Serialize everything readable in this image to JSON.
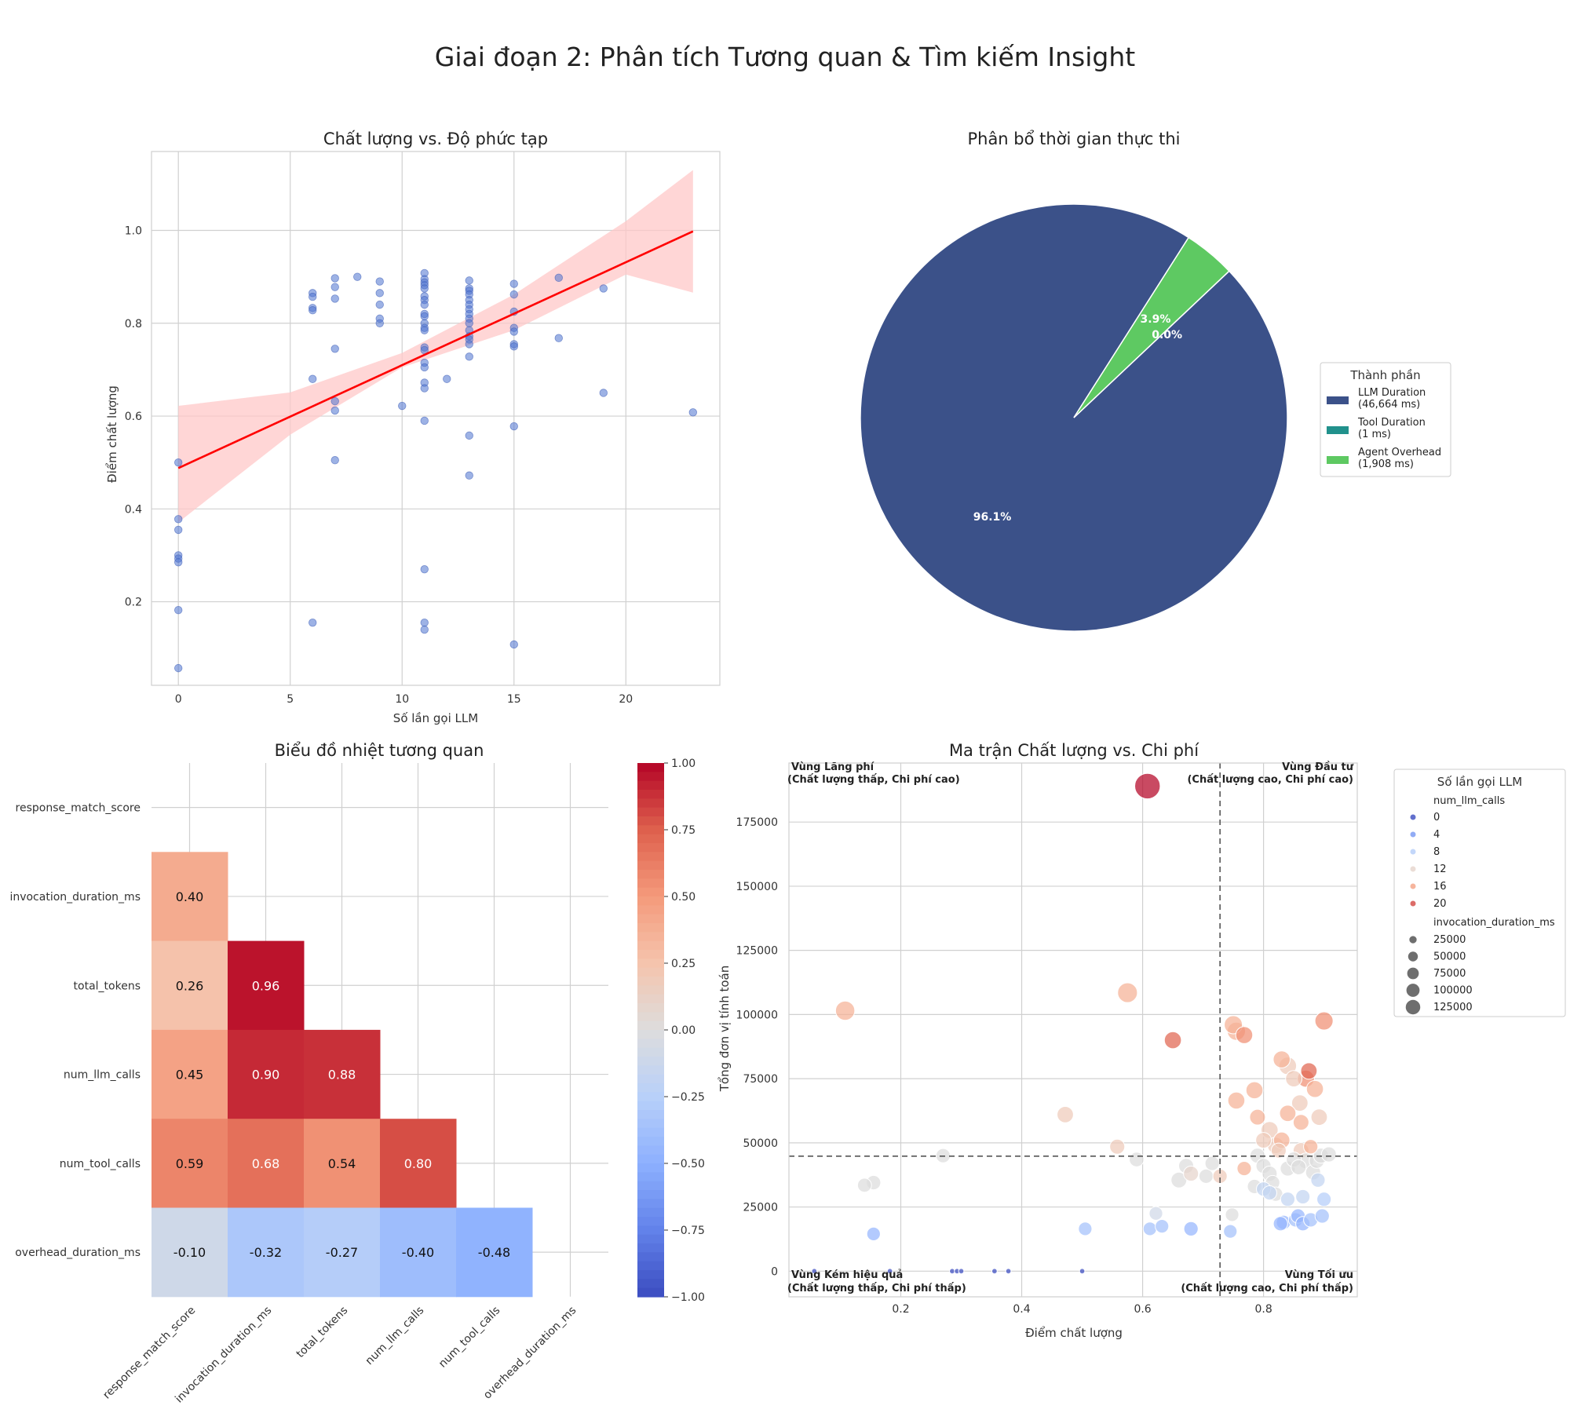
{
  "figure": {
    "title": "Giai đoạn 2: Phân tích Tương quan & Tìm kiếm Insight"
  },
  "chart_data": [
    {
      "type": "scatter",
      "title": "Chất lượng vs. Độ phức tạp",
      "xlabel": "Số lần gọi LLM",
      "ylabel": "Điểm chất lượng",
      "xlim": [
        -1.2,
        24.2
      ],
      "ylim": [
        0.02,
        1.17
      ],
      "xticks": [
        0,
        5,
        10,
        15,
        20
      ],
      "yticks": [
        0.2,
        0.4,
        0.6,
        0.8,
        1.0
      ],
      "point_color": "#4c72d0",
      "regression": {
        "x": [
          0,
          23
        ],
        "y": [
          0.488,
          0.998
        ],
        "color": "#ff0000",
        "ci_color": "#ffc8c8",
        "ci_upper": [
          [
            0,
            0.622
          ],
          [
            5,
            0.651
          ],
          [
            10,
            0.736
          ],
          [
            15,
            0.862
          ],
          [
            20,
            1.02
          ],
          [
            23,
            1.13
          ]
        ],
        "ci_lower": [
          [
            0,
            0.371
          ],
          [
            5,
            0.56
          ],
          [
            10,
            0.705
          ],
          [
            15,
            0.785
          ],
          [
            20,
            0.905
          ],
          [
            23,
            0.866
          ]
        ]
      },
      "points": [
        [
          0,
          0.5
        ],
        [
          0,
          0.378
        ],
        [
          0,
          0.355
        ],
        [
          0,
          0.3
        ],
        [
          0,
          0.293
        ],
        [
          0,
          0.285
        ],
        [
          0,
          0.182
        ],
        [
          0,
          0.057
        ],
        [
          6,
          0.865
        ],
        [
          6,
          0.857
        ],
        [
          6,
          0.833
        ],
        [
          6,
          0.828
        ],
        [
          6,
          0.68
        ],
        [
          6,
          0.155
        ],
        [
          7,
          0.897
        ],
        [
          7,
          0.878
        ],
        [
          7,
          0.853
        ],
        [
          7,
          0.745
        ],
        [
          7,
          0.632
        ],
        [
          7,
          0.612
        ],
        [
          7,
          0.505
        ],
        [
          8,
          0.9
        ],
        [
          9,
          0.89
        ],
        [
          9,
          0.865
        ],
        [
          9,
          0.84
        ],
        [
          9,
          0.81
        ],
        [
          9,
          0.8
        ],
        [
          10,
          0.622
        ],
        [
          11,
          0.908
        ],
        [
          11,
          0.895
        ],
        [
          11,
          0.888
        ],
        [
          11,
          0.882
        ],
        [
          11,
          0.875
        ],
        [
          11,
          0.858
        ],
        [
          11,
          0.85
        ],
        [
          11,
          0.84
        ],
        [
          11,
          0.82
        ],
        [
          11,
          0.815
        ],
        [
          11,
          0.8
        ],
        [
          11,
          0.79
        ],
        [
          11,
          0.785
        ],
        [
          11,
          0.748
        ],
        [
          11,
          0.742
        ],
        [
          11,
          0.715
        ],
        [
          11,
          0.705
        ],
        [
          11,
          0.672
        ],
        [
          11,
          0.66
        ],
        [
          11,
          0.59
        ],
        [
          11,
          0.27
        ],
        [
          11,
          0.155
        ],
        [
          11,
          0.14
        ],
        [
          12,
          0.68
        ],
        [
          13,
          0.892
        ],
        [
          13,
          0.875
        ],
        [
          13,
          0.87
        ],
        [
          13,
          0.862
        ],
        [
          13,
          0.85
        ],
        [
          13,
          0.84
        ],
        [
          13,
          0.83
        ],
        [
          13,
          0.82
        ],
        [
          13,
          0.81
        ],
        [
          13,
          0.8
        ],
        [
          13,
          0.785
        ],
        [
          13,
          0.772
        ],
        [
          13,
          0.765
        ],
        [
          13,
          0.755
        ],
        [
          13,
          0.728
        ],
        [
          13,
          0.558
        ],
        [
          13,
          0.472
        ],
        [
          15,
          0.885
        ],
        [
          15,
          0.862
        ],
        [
          15,
          0.825
        ],
        [
          15,
          0.79
        ],
        [
          15,
          0.782
        ],
        [
          15,
          0.755
        ],
        [
          15,
          0.75
        ],
        [
          15,
          0.578
        ],
        [
          15,
          0.108
        ],
        [
          17,
          0.898
        ],
        [
          17,
          0.768
        ],
        [
          19,
          0.875
        ],
        [
          19,
          0.65
        ],
        [
          23,
          0.608
        ]
      ]
    },
    {
      "type": "pie",
      "title": "Phân bổ thời gian thực thi",
      "legend_title": "Thành phần",
      "slices": [
        {
          "label": "LLM Duration",
          "detail": "(46,664 ms)",
          "value": 46664,
          "pct": "96.1%",
          "color": "#3b5189"
        },
        {
          "label": "Tool Duration",
          "detail": "(1 ms)",
          "value": 1,
          "pct": "0.0%",
          "color": "#21918c"
        },
        {
          "label": "Agent Overhead",
          "detail": "(1,908 ms)",
          "value": 1908,
          "pct": "3.9%",
          "color": "#5ec962"
        }
      ]
    },
    {
      "type": "heatmap",
      "title": "Biểu đồ nhiệt tương quan",
      "labels": [
        "response_match_score",
        "invocation_duration_ms",
        "total_tokens",
        "num_llm_calls",
        "num_tool_calls",
        "overhead_duration_ms"
      ],
      "matrix": [
        [
          null,
          null,
          null,
          null,
          null,
          null
        ],
        [
          0.4,
          null,
          null,
          null,
          null,
          null
        ],
        [
          0.26,
          0.96,
          null,
          null,
          null,
          null
        ],
        [
          0.45,
          0.9,
          0.88,
          null,
          null,
          null
        ],
        [
          0.59,
          0.68,
          0.54,
          0.8,
          null,
          null
        ],
        [
          -0.1,
          -0.32,
          -0.27,
          -0.4,
          -0.48,
          null
        ]
      ],
      "cell_labels": [
        [
          "",
          "",
          "",
          "",
          "",
          ""
        ],
        [
          "0.40",
          "",
          "",
          "",
          "",
          ""
        ],
        [
          "0.26",
          "0.96",
          "",
          "",
          "",
          ""
        ],
        [
          "0.45",
          "0.90",
          "0.88",
          "",
          "",
          ""
        ],
        [
          "0.59",
          "0.68",
          "0.54",
          "0.80",
          "",
          ""
        ],
        [
          "-0.10",
          "-0.32",
          "-0.27",
          "-0.40",
          "-0.48",
          ""
        ]
      ],
      "colorbar": {
        "min": -1.0,
        "max": 1.0,
        "ticks": [
          1.0,
          0.75,
          0.5,
          0.25,
          0.0,
          -0.25,
          -0.5,
          -0.75,
          -1.0
        ],
        "tick_labels": [
          "1.00",
          "0.75",
          "0.50",
          "0.25",
          "0.00",
          "−0.25",
          "−0.50",
          "−0.75",
          "−1.00"
        ]
      }
    },
    {
      "type": "scatter",
      "title": "Ma trận Chất lượng vs. Chi phí",
      "xlabel": "Điểm chất lượng",
      "ylabel": "Tổng đơn vị tính toán",
      "xlim": [
        0.015,
        0.955
      ],
      "ylim": [
        -10000,
        198000
      ],
      "xticks": [
        0.2,
        0.4,
        0.6,
        0.8
      ],
      "xtick_labels": [
        "0.2",
        "0.4",
        "0.6",
        "0.8"
      ],
      "yticks": [
        0,
        25000,
        50000,
        75000,
        100000,
        125000,
        150000,
        175000
      ],
      "ytick_labels": [
        "0",
        "25000",
        "50000",
        "75000",
        "100000",
        "125000",
        "150000",
        "175000"
      ],
      "threshold_x": 0.728,
      "threshold_y": 44800,
      "quadrants": {
        "top_left": [
          "Vùng Lãng phí",
          "(Chất lượng thấp, Chi phí cao)"
        ],
        "top_right": [
          "Vùng Đầu tư",
          "(Chất lượng cao, Chi phí cao)"
        ],
        "bottom_left": [
          "Vùng Kém hiệu quả",
          "(Chất lượng thấp, Chi phí thấp)"
        ],
        "bottom_right": [
          "Vùng Tối ưu",
          "(Chất lượng cao, Chi phí thấp)"
        ]
      },
      "legend": {
        "title": "Số lần gọi LLM",
        "hue_title": "num_llm_calls",
        "hue_items": [
          {
            "label": "0",
            "value": 0
          },
          {
            "label": "4",
            "value": 4
          },
          {
            "label": "8",
            "value": 8
          },
          {
            "label": "12",
            "value": 12
          },
          {
            "label": "16",
            "value": 16
          },
          {
            "label": "20",
            "value": 20
          }
        ],
        "size_title": "invocation_duration_ms",
        "size_items": [
          {
            "label": "25000",
            "value": 25000
          },
          {
            "label": "50000",
            "value": 50000
          },
          {
            "label": "75000",
            "value": 75000
          },
          {
            "label": "100000",
            "value": 100000
          },
          {
            "label": "125000",
            "value": 125000
          }
        ]
      },
      "points_note": "[quality, compute_units, num_llm_calls, invocation_duration_ms]",
      "points": [
        [
          0.057,
          0,
          0,
          2500
        ],
        [
          0.182,
          0,
          0,
          2500
        ],
        [
          0.285,
          0,
          0,
          2500
        ],
        [
          0.293,
          0,
          0,
          2500
        ],
        [
          0.3,
          0,
          0,
          2500
        ],
        [
          0.355,
          0,
          0,
          2500
        ],
        [
          0.378,
          0,
          0,
          2500
        ],
        [
          0.5,
          0,
          0,
          2500
        ],
        [
          0.608,
          189000,
          23,
          150000
        ],
        [
          0.108,
          101500,
          15,
          80000
        ],
        [
          0.575,
          108500,
          15,
          85000
        ],
        [
          0.65,
          90000,
          19,
          60000
        ],
        [
          0.472,
          61000,
          13,
          55000
        ],
        [
          0.558,
          48500,
          13,
          45000
        ],
        [
          0.59,
          43500,
          11,
          42000
        ],
        [
          0.27,
          45000,
          11,
          40000
        ],
        [
          0.155,
          34500,
          11,
          40000
        ],
        [
          0.14,
          33500,
          11,
          38000
        ],
        [
          0.155,
          14500,
          6,
          35000
        ],
        [
          0.505,
          16500,
          7,
          35000
        ],
        [
          0.612,
          16500,
          7,
          35000
        ],
        [
          0.632,
          17500,
          7,
          35000
        ],
        [
          0.68,
          16500,
          6,
          40000
        ],
        [
          0.745,
          15500,
          7,
          35000
        ],
        [
          0.622,
          22500,
          10,
          35000
        ],
        [
          0.66,
          35500,
          11,
          50000
        ],
        [
          0.672,
          41000,
          11,
          45000
        ],
        [
          0.68,
          38000,
          12,
          45000
        ],
        [
          0.705,
          37000,
          11,
          40000
        ],
        [
          0.715,
          42000,
          11,
          40000
        ],
        [
          0.728,
          37000,
          13,
          40000
        ],
        [
          0.748,
          22000,
          11,
          35000
        ],
        [
          0.755,
          93500,
          15,
          70000
        ],
        [
          0.75,
          96000,
          15,
          70000
        ],
        [
          0.768,
          92000,
          17,
          60000
        ],
        [
          0.755,
          66500,
          15,
          60000
        ],
        [
          0.768,
          40000,
          15,
          40000
        ],
        [
          0.785,
          70500,
          15,
          60000
        ],
        [
          0.79,
          60000,
          15,
          50000
        ],
        [
          0.8,
          51000,
          13,
          50000
        ],
        [
          0.81,
          55000,
          13,
          60000
        ],
        [
          0.82,
          49000,
          13,
          55000
        ],
        [
          0.83,
          82500,
          15,
          60000
        ],
        [
          0.84,
          80000,
          13,
          65000
        ],
        [
          0.85,
          75000,
          13,
          55000
        ],
        [
          0.86,
          65500,
          13,
          55000
        ],
        [
          0.862,
          58000,
          15,
          50000
        ],
        [
          0.87,
          75000,
          17,
          60000
        ],
        [
          0.875,
          78000,
          19,
          55000
        ],
        [
          0.878,
          48500,
          15,
          40000
        ],
        [
          0.885,
          71000,
          15,
          60000
        ],
        [
          0.892,
          60000,
          13,
          55000
        ],
        [
          0.9,
          97500,
          17,
          70000
        ],
        [
          0.84,
          61500,
          15,
          55000
        ],
        [
          0.83,
          51000,
          15,
          55000
        ],
        [
          0.825,
          47000,
          13,
          45000
        ],
        [
          0.862,
          47000,
          13,
          50000
        ],
        [
          0.87,
          43000,
          11,
          50000
        ],
        [
          0.79,
          45000,
          11,
          45000
        ],
        [
          0.8,
          41000,
          11,
          45000
        ],
        [
          0.81,
          38000,
          11,
          45000
        ],
        [
          0.815,
          34500,
          11,
          40000
        ],
        [
          0.785,
          33000,
          11,
          40000
        ],
        [
          0.82,
          30000,
          11,
          40000
        ],
        [
          0.84,
          40000,
          11,
          45000
        ],
        [
          0.85,
          43500,
          11,
          45000
        ],
        [
          0.858,
          40500,
          11,
          45000
        ],
        [
          0.882,
          38500,
          11,
          45000
        ],
        [
          0.888,
          43000,
          11,
          45000
        ],
        [
          0.895,
          45000,
          11,
          45000
        ],
        [
          0.908,
          45500,
          11,
          45000
        ],
        [
          0.8,
          32000,
          9,
          40000
        ],
        [
          0.81,
          30500,
          9,
          40000
        ],
        [
          0.84,
          28000,
          9,
          40000
        ],
        [
          0.865,
          29000,
          9,
          40000
        ],
        [
          0.89,
          35500,
          9,
          40000
        ],
        [
          0.9,
          28000,
          8,
          40000
        ],
        [
          0.833,
          19000,
          6,
          40000
        ],
        [
          0.828,
          18500,
          6,
          40000
        ],
        [
          0.853,
          20000,
          7,
          40000
        ],
        [
          0.857,
          21500,
          6,
          40000
        ],
        [
          0.865,
          18500,
          6,
          40000
        ],
        [
          0.878,
          20000,
          7,
          40000
        ],
        [
          0.897,
          21500,
          7,
          40000
        ]
      ]
    }
  ]
}
